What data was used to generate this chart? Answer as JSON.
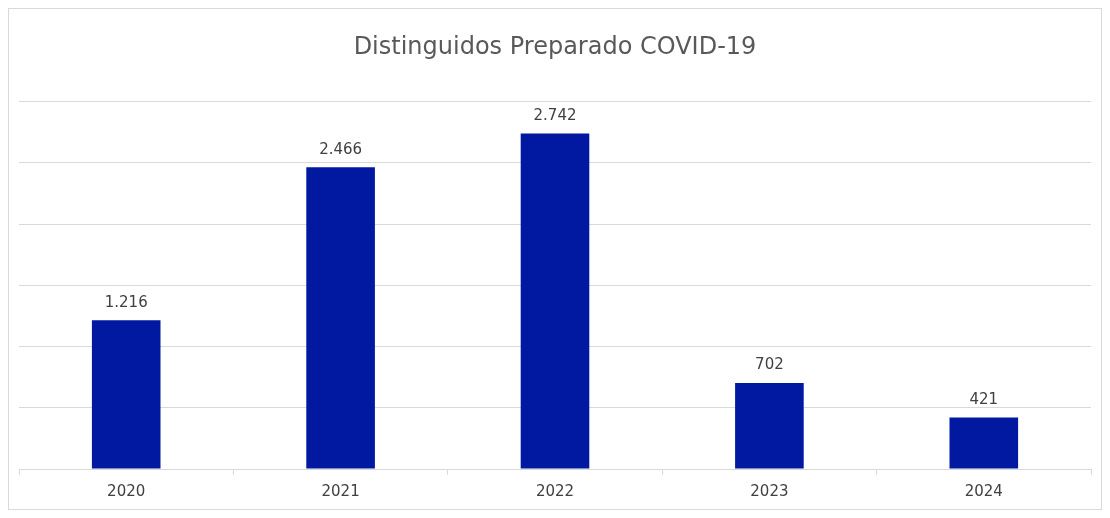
{
  "chart_data": {
    "type": "bar",
    "title": "Distinguidos Preparado COVID-19",
    "categories": [
      "2020",
      "2021",
      "2022",
      "2023",
      "2024"
    ],
    "values": [
      1216,
      2466,
      2742,
      702,
      421
    ],
    "value_labels": [
      "1.216",
      "2.466",
      "2.742",
      "702",
      "421"
    ],
    "color": "#0019a0",
    "ylim": [
      0,
      3000
    ],
    "yticks": [
      {
        "value": 0,
        "label": null
      },
      {
        "value": 500,
        "label": null
      },
      {
        "value": 1000,
        "label": null
      },
      {
        "value": 1500,
        "label": null
      },
      {
        "value": 2000,
        "label": null
      },
      {
        "value": 2500,
        "label": null
      },
      {
        "value": 3000,
        "label": null
      }
    ],
    "tick_labels": "x",
    "grid": "y"
  }
}
